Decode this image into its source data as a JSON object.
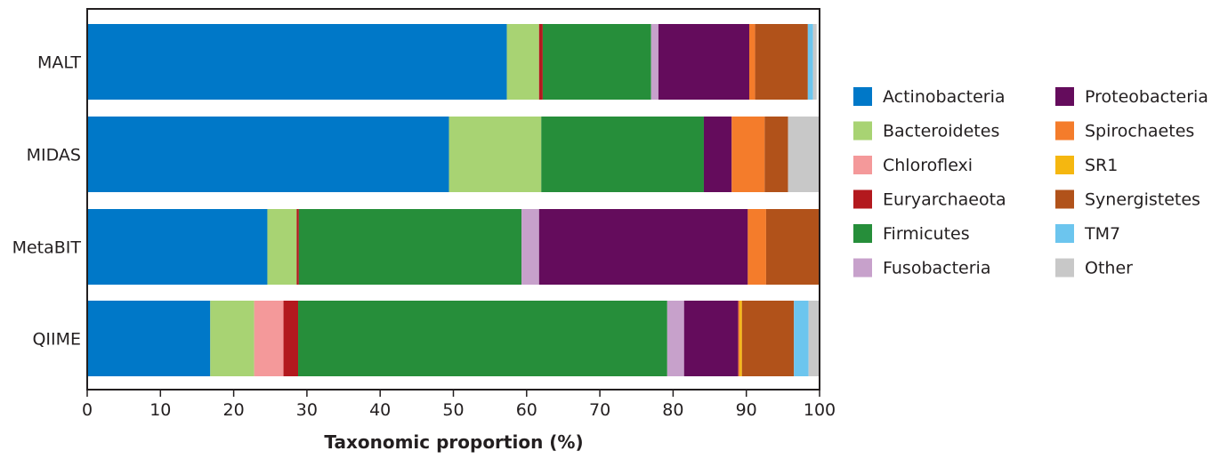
{
  "chart_data": {
    "type": "bar",
    "orientation": "horizontal",
    "stacked": true,
    "categories": [
      "MALT",
      "MIDAS",
      "MetaBIT",
      "QIIME"
    ],
    "series": [
      {
        "name": "Actinobacteria",
        "color": "#0078c8",
        "values": [
          57.3,
          49.4,
          24.6,
          16.8
        ]
      },
      {
        "name": "Bacteroidetes",
        "color": "#a8d373",
        "values": [
          4.4,
          12.6,
          4.0,
          6.0
        ]
      },
      {
        "name": "Chloroflexi",
        "color": "#f4999a",
        "values": [
          0.0,
          0.0,
          0.0,
          4.0
        ]
      },
      {
        "name": "Euryarchaeota",
        "color": "#b3191e",
        "values": [
          0.5,
          0.0,
          0.3,
          2.0
        ]
      },
      {
        "name": "Firmicutes",
        "color": "#268e3a",
        "values": [
          14.8,
          22.2,
          30.4,
          50.4
        ]
      },
      {
        "name": "Fusobacteria",
        "color": "#c7a1cb",
        "values": [
          1.0,
          0.0,
          2.4,
          2.3
        ]
      },
      {
        "name": "Proteobacteria",
        "color": "#640c5c",
        "values": [
          12.4,
          3.8,
          28.5,
          7.4
        ]
      },
      {
        "name": "Spirochaetes",
        "color": "#f47c2b",
        "values": [
          0.8,
          4.5,
          2.5,
          0.2
        ]
      },
      {
        "name": "SR1",
        "color": "#f5b710",
        "values": [
          0.0,
          0.0,
          0.0,
          0.3
        ]
      },
      {
        "name": "Synergistetes",
        "color": "#b1521a",
        "values": [
          7.2,
          3.2,
          7.3,
          7.1
        ]
      },
      {
        "name": "TM7",
        "color": "#6cc5ee",
        "values": [
          0.7,
          0.0,
          0.0,
          2.0
        ]
      },
      {
        "name": "Other",
        "color": "#c8c8c8",
        "values": [
          0.5,
          4.3,
          0.0,
          1.5
        ]
      }
    ],
    "xlabel": "Taxonomic proportion (%)",
    "ylabel": "",
    "xlim": [
      0,
      100
    ],
    "xticks": [
      "0",
      "10",
      "20",
      "30",
      "40",
      "50",
      "60",
      "70",
      "80",
      "90",
      "100"
    ],
    "grid": false,
    "legend_position": "right"
  }
}
